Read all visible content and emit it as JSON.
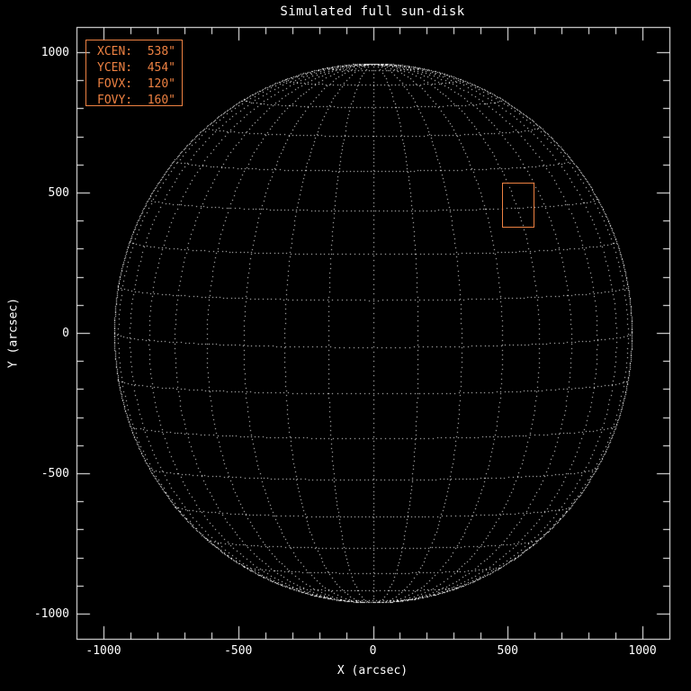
{
  "title": "Simulated full sun-disk",
  "axes": {
    "xlabel": "X (arcsec)",
    "ylabel": "Y (arcsec)",
    "x_major_ticks": [
      {
        "value": -1000,
        "label": "-1000"
      },
      {
        "value": -500,
        "label": "-500"
      },
      {
        "value": 0,
        "label": "0"
      },
      {
        "value": 500,
        "label": "500"
      },
      {
        "value": 1000,
        "label": "1000"
      }
    ],
    "y_major_ticks": [
      {
        "value": 1000,
        "label": "1000"
      },
      {
        "value": 500,
        "label": "500"
      },
      {
        "value": 0,
        "label": "0"
      },
      {
        "value": -500,
        "label": "-500"
      },
      {
        "value": -1000,
        "label": "-1000"
      }
    ],
    "minor_tick_step": 100
  },
  "legend": {
    "rows": [
      {
        "label": "XCEN:",
        "value": "538\""
      },
      {
        "label": "YCEN:",
        "value": "454\""
      },
      {
        "label": "FOVX:",
        "value": "120\""
      },
      {
        "label": "FOVY:",
        "value": "160\""
      }
    ]
  },
  "chart_data": {
    "type": "line",
    "title": "Simulated full sun-disk",
    "xlabel": "X (arcsec)",
    "ylabel": "Y (arcsec)",
    "xlim": [
      -1100,
      1100
    ],
    "ylim": [
      -1090,
      1090
    ],
    "grid": "heliographic wireframe, dotted lines",
    "sun_radius_arcsec": 960,
    "grid_spacing_deg": 10,
    "b0_tilt_deg": 3,
    "fov_box": {
      "xcen": 538,
      "ycen": 454,
      "fovx": 120,
      "fovy": 160
    },
    "colors": {
      "background": "#000000",
      "foreground": "#FFFFFF",
      "accent": "#ED8142"
    }
  }
}
